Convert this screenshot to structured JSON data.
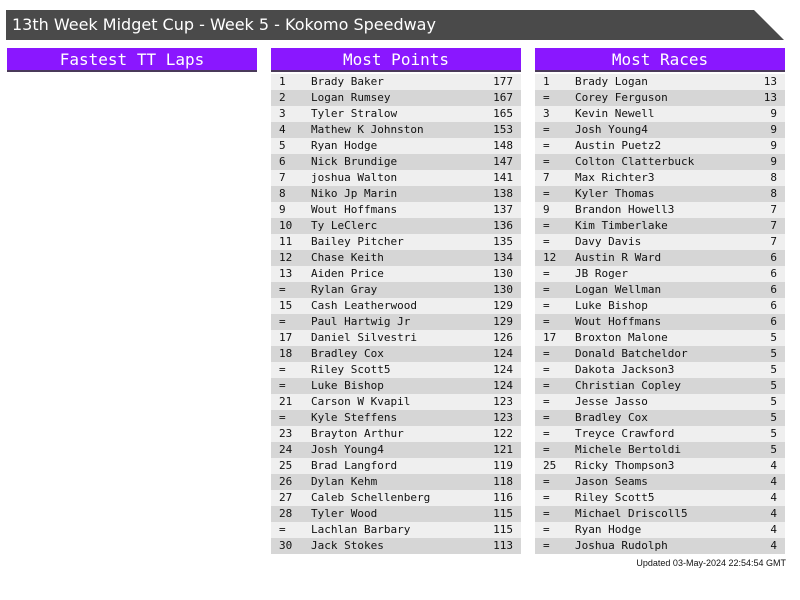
{
  "title": "13th Week Midget Cup - Week 5 - Kokomo Speedway",
  "colors": {
    "header": "#8a17ff",
    "titlebar": "#4a4a4a"
  },
  "panels": [
    {
      "title": "Fastest TT Laps",
      "rows": []
    },
    {
      "title": "Most Points",
      "rows": [
        [
          "1",
          "Brady Baker",
          "177"
        ],
        [
          "2",
          "Logan Rumsey",
          "167"
        ],
        [
          "3",
          "Tyler Stralow",
          "165"
        ],
        [
          "4",
          "Mathew K Johnston",
          "153"
        ],
        [
          "5",
          "Ryan Hodge",
          "148"
        ],
        [
          "6",
          "Nick Brundige",
          "147"
        ],
        [
          "7",
          "joshua Walton",
          "141"
        ],
        [
          "8",
          "Niko Jp Marin",
          "138"
        ],
        [
          "9",
          "Wout Hoffmans",
          "137"
        ],
        [
          "10",
          "Ty LeClerc",
          "136"
        ],
        [
          "11",
          "Bailey Pitcher",
          "135"
        ],
        [
          "12",
          "Chase Keith",
          "134"
        ],
        [
          "13",
          "Aiden Price",
          "130"
        ],
        [
          "=",
          "Rylan Gray",
          "130"
        ],
        [
          "15",
          "Cash Leatherwood",
          "129"
        ],
        [
          "=",
          "Paul Hartwig Jr",
          "129"
        ],
        [
          "17",
          "Daniel Silvestri",
          "126"
        ],
        [
          "18",
          "Bradley Cox",
          "124"
        ],
        [
          "=",
          "Riley Scott5",
          "124"
        ],
        [
          "=",
          "Luke Bishop",
          "124"
        ],
        [
          "21",
          "Carson W Kvapil",
          "123"
        ],
        [
          "=",
          "Kyle Steffens",
          "123"
        ],
        [
          "23",
          "Brayton Arthur",
          "122"
        ],
        [
          "24",
          "Josh Young4",
          "121"
        ],
        [
          "25",
          "Brad Langford",
          "119"
        ],
        [
          "26",
          "Dylan Kehm",
          "118"
        ],
        [
          "27",
          "Caleb Schellenberg",
          "116"
        ],
        [
          "28",
          "Tyler Wood",
          "115"
        ],
        [
          "=",
          "Lachlan Barbary",
          "115"
        ],
        [
          "30",
          "Jack Stokes",
          "113"
        ]
      ]
    },
    {
      "title": "Most Races",
      "rows": [
        [
          "1",
          "Brady Logan",
          "13"
        ],
        [
          "=",
          "Corey Ferguson",
          "13"
        ],
        [
          "3",
          "Kevin Newell",
          "9"
        ],
        [
          "=",
          "Josh Young4",
          "9"
        ],
        [
          "=",
          "Austin Puetz2",
          "9"
        ],
        [
          "=",
          "Colton Clatterbuck",
          "9"
        ],
        [
          "7",
          "Max Richter3",
          "8"
        ],
        [
          "=",
          "Kyler Thomas",
          "8"
        ],
        [
          "9",
          "Brandon Howell3",
          "7"
        ],
        [
          "=",
          "Kim Timberlake",
          "7"
        ],
        [
          "=",
          "Davy Davis",
          "7"
        ],
        [
          "12",
          "Austin R Ward",
          "6"
        ],
        [
          "=",
          "JB Roger",
          "6"
        ],
        [
          "=",
          "Logan Wellman",
          "6"
        ],
        [
          "=",
          "Luke Bishop",
          "6"
        ],
        [
          "=",
          "Wout Hoffmans",
          "6"
        ],
        [
          "17",
          "Broxton Malone",
          "5"
        ],
        [
          "=",
          "Donald Batcheldor",
          "5"
        ],
        [
          "=",
          "Dakota Jackson3",
          "5"
        ],
        [
          "=",
          "Christian Copley",
          "5"
        ],
        [
          "=",
          "Jesse Jasso",
          "5"
        ],
        [
          "=",
          "Bradley Cox",
          "5"
        ],
        [
          "=",
          "Treyce Crawford",
          "5"
        ],
        [
          "=",
          "Michele Bertoldi",
          "5"
        ],
        [
          "25",
          "Ricky Thompson3",
          "4"
        ],
        [
          "=",
          "Jason Seams",
          "4"
        ],
        [
          "=",
          "Riley Scott5",
          "4"
        ],
        [
          "=",
          "Michael Driscoll5",
          "4"
        ],
        [
          "=",
          "Ryan Hodge",
          "4"
        ],
        [
          "=",
          "Joshua Rudolph",
          "4"
        ]
      ]
    }
  ],
  "updated": "Updated 03-May-2024 22:54:54 GMT"
}
